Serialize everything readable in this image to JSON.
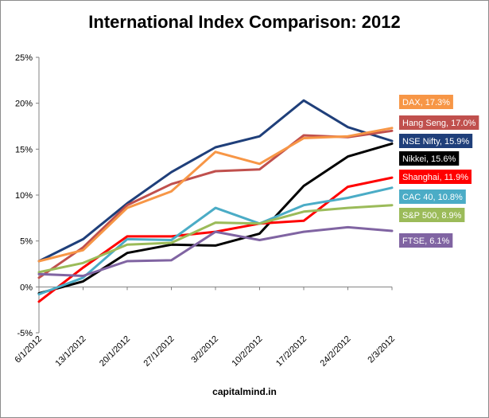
{
  "chart_data": {
    "type": "line",
    "title": "International Index Comparison: 2012",
    "footer": "capitalmind.in",
    "x": [
      "6/1/2012",
      "13/1/2012",
      "20/1/2012",
      "27/1/2012",
      "3/2/2012",
      "10/2/2012",
      "17/2/2012",
      "24/2/2012",
      "2/3/2012"
    ],
    "ylim": [
      -5,
      25
    ],
    "yticks": [
      -5,
      0,
      5,
      10,
      15,
      20,
      25
    ],
    "ytick_labels": [
      "-5%",
      "0%",
      "5%",
      "10%",
      "15%",
      "20%",
      "25%"
    ],
    "grid": false,
    "series": [
      {
        "name": "NSE Nifty",
        "label": "NSE Nifty, 15.9%",
        "color": "#1f3f7a",
        "text_color": "#ffffff",
        "values": [
          2.8,
          5.2,
          9.1,
          12.5,
          15.2,
          16.4,
          20.3,
          17.4,
          15.9
        ]
      },
      {
        "name": "Hang Seng",
        "label": "Hang Seng, 17.0%",
        "color": "#c0504d",
        "text_color": "#ffffff",
        "values": [
          1.0,
          4.3,
          8.9,
          11.2,
          12.6,
          12.8,
          16.5,
          16.3,
          17.0
        ]
      },
      {
        "name": "DAX",
        "label": "DAX, 17.3%",
        "color": "#f79646",
        "text_color": "#ffffff",
        "values": [
          2.8,
          4.0,
          8.6,
          10.4,
          14.7,
          13.4,
          16.2,
          16.4,
          17.3
        ]
      },
      {
        "name": "Nikkei",
        "label": "Nikkei, 15.6%",
        "color": "#000000",
        "text_color": "#ffffff",
        "values": [
          -0.7,
          0.6,
          3.7,
          4.6,
          4.5,
          5.8,
          11.0,
          14.2,
          15.6
        ]
      },
      {
        "name": "Shanghai",
        "label": "Shanghai, 11.9%",
        "color": "#ff0000",
        "text_color": "#ffffff",
        "values": [
          -1.6,
          2.1,
          5.5,
          5.5,
          6.0,
          6.9,
          7.2,
          10.9,
          11.9
        ]
      },
      {
        "name": "CAC 40",
        "label": "CAC 40, 10.8%",
        "color": "#4bacc6",
        "text_color": "#ffffff",
        "values": [
          -0.8,
          1.0,
          5.2,
          5.1,
          8.6,
          6.9,
          8.9,
          9.7,
          10.8
        ]
      },
      {
        "name": "S&P 500",
        "label": "S&P 500, 8.9%",
        "color": "#9bbb59",
        "text_color": "#ffffff",
        "values": [
          1.6,
          2.6,
          4.6,
          4.8,
          7.0,
          6.9,
          8.2,
          8.6,
          8.9
        ]
      },
      {
        "name": "FTSE",
        "label": "FTSE, 6.1%",
        "color": "#8064a2",
        "text_color": "#ffffff",
        "values": [
          1.4,
          1.2,
          2.8,
          2.9,
          6.0,
          5.1,
          6.0,
          6.5,
          6.1
        ]
      }
    ],
    "legend_order": [
      "DAX",
      "Hang Seng",
      "NSE Nifty",
      "Nikkei",
      "Shanghai",
      "CAC 40",
      "S&P 500",
      "FTSE"
    ]
  }
}
